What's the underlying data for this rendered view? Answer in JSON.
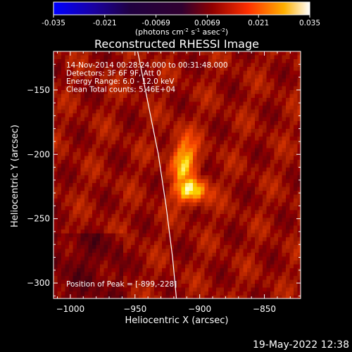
{
  "colorbar": {
    "ticks": [
      "-0.035",
      "-0.021",
      "-0.0069",
      "0.0069",
      "0.021",
      "0.035"
    ],
    "unit_main": "(photons cm",
    "unit_exp1": "-2",
    "unit_mid": " s",
    "unit_exp2": "-1",
    "unit_end": " asec",
    "unit_exp3": "-2",
    "unit_close": ")",
    "colors": [
      "#0000ff",
      "#2a0066",
      "#1a0033",
      "#3a0040",
      "#800000",
      "#e03000",
      "#ffa000",
      "#ffffff"
    ]
  },
  "chart_data": {
    "type": "heatmap",
    "title": "Reconstructed RHESSI Image",
    "xlabel": "Heliocentric X (arcsec)",
    "ylabel": "Heliocentric Y (arcsec)",
    "xlim": [
      -1013,
      -822
    ],
    "ylim": [
      -312,
      -120
    ],
    "x_ticks": [
      -1000,
      -950,
      -900,
      -850
    ],
    "y_ticks": [
      -150,
      -200,
      -250,
      -300
    ],
    "x_tick_labels": [
      "−1000",
      "−950",
      "−900",
      "−850"
    ],
    "y_tick_labels": [
      "−150",
      "−200",
      "−250",
      "−300"
    ],
    "info_lines": [
      "14-Nov-2014 00:28:24.000 to 00:31:48.000",
      "Detectors: 3F 6F 9F, Att 0",
      "Energy Range: 6.0 - 12.0 keV",
      "Clean    Total counts: 5.46E+04"
    ],
    "peak_label": "Position of Peak = [-899,-228]",
    "peak": [
      -899,
      -228
    ],
    "limb_curve": [
      [
        -948,
        -120
      ],
      [
        -940,
        -160
      ],
      [
        -932,
        -200
      ],
      [
        -926,
        -240
      ],
      [
        -921,
        -280
      ],
      [
        -918,
        -312
      ]
    ]
  },
  "footer": {
    "date": "19-May-2022 12:38"
  }
}
